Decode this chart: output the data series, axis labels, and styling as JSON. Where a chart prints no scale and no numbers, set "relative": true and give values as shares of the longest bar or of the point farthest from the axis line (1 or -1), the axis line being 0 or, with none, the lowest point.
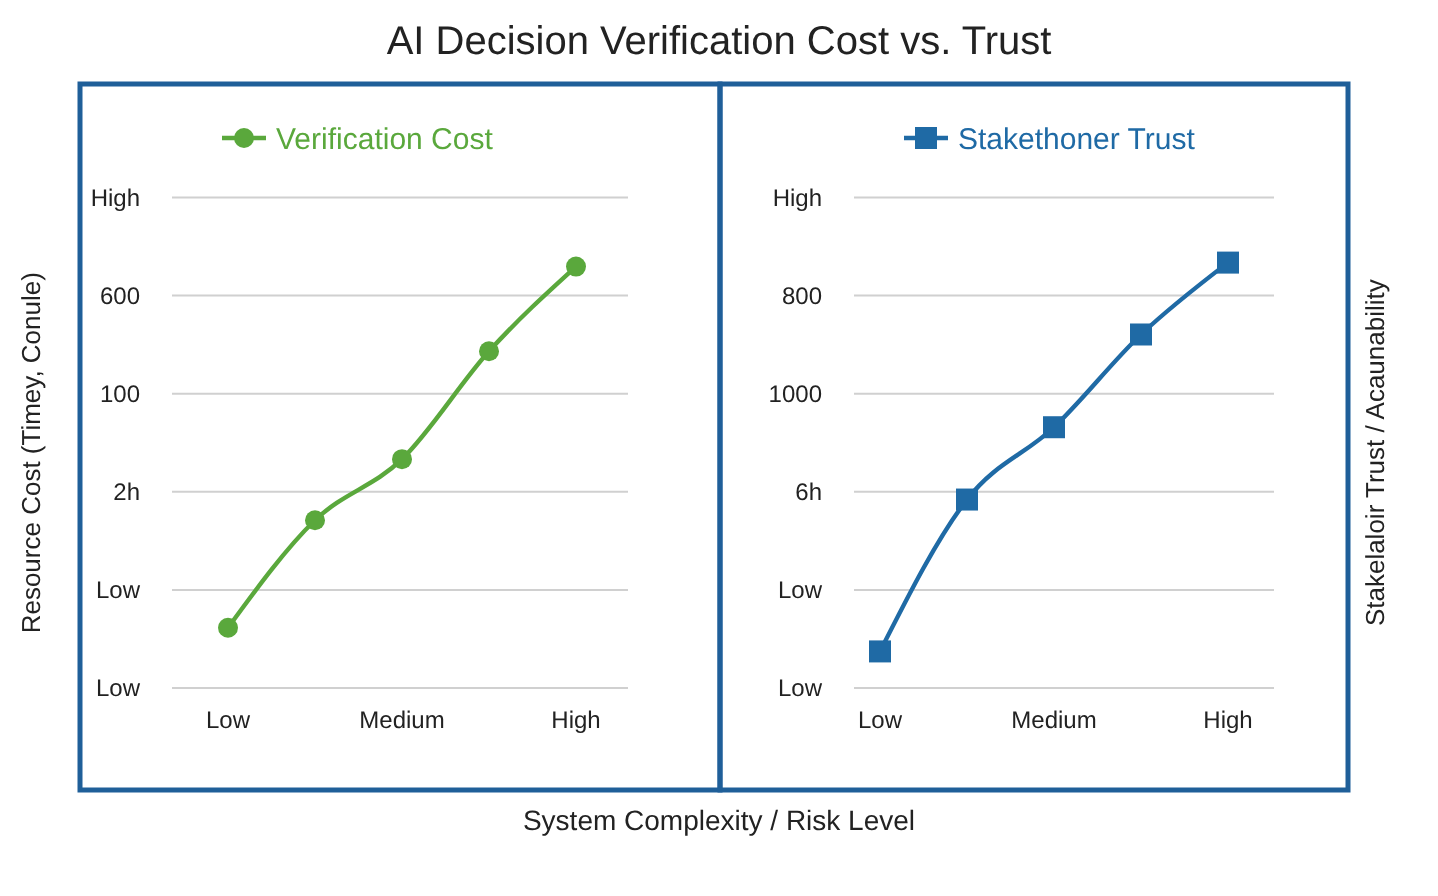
{
  "chart_data": [
    {
      "type": "line",
      "title": "AI Decision Verification Cost vs. Trust",
      "xlabel": "System Complexity / Risk Level",
      "ylabel": "Resource Cost (Timey, Conule)",
      "categories": [
        "Low",
        null,
        "Medium",
        null,
        "High"
      ],
      "series": [
        {
          "name": "Verification Cost",
          "color": "#5aa83c",
          "values": [
            0.143,
            0.398,
            0.543,
            0.799,
            1
          ]
        }
      ],
      "relative": true,
      "annotations": [
        "High",
        "600",
        "100",
        "2h",
        "Low",
        "Low"
      ],
      "grid": "y",
      "legend": "top",
      "marker": "circle",
      "line_style": "solid"
    },
    {
      "type": "line",
      "ylabel": "Stakelaloir Trust / Acaunability",
      "categories": [
        "Low",
        null,
        "Medium",
        null,
        "High"
      ],
      "series": [
        {
          "name": "Stakethoner Trust",
          "color": "#1f6aa5",
          "values": [
            0.086,
            0.443,
            0.613,
            0.831,
            1
          ]
        }
      ],
      "relative": true,
      "annotations": [
        "High",
        "800",
        "1000",
        "6h",
        "Low",
        "Low"
      ],
      "grid": "y",
      "legend": "top",
      "marker": "square",
      "line_style": "solid"
    }
  ]
}
